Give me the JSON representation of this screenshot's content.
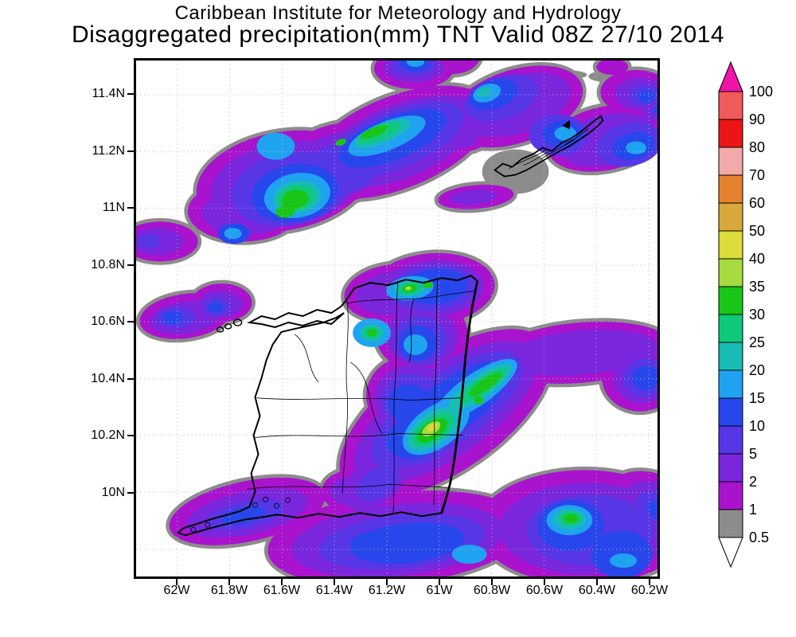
{
  "title": {
    "line1": "Caribbean Institute for Meteorology and Hydrology",
    "line2": "Disaggregated precipitation(mm) TNT Valid 08Z 27/10 2014"
  },
  "axes": {
    "lat_ticks": [
      "11.4N",
      "11.2N",
      "11N",
      "10.8N",
      "10.6N",
      "10.4N",
      "10.2N",
      "10N"
    ],
    "lon_ticks": [
      "62W",
      "61.8W",
      "61.6W",
      "61.4W",
      "61.2W",
      "61W",
      "60.8W",
      "60.6W",
      "60.4W",
      "60.2W"
    ]
  },
  "colorbar": {
    "boundaries": [
      "100",
      "90",
      "80",
      "70",
      "60",
      "50",
      "40",
      "35",
      "30",
      "25",
      "20",
      "15",
      "10",
      "5",
      "2",
      "1",
      "0.5"
    ],
    "segment_colors": [
      "#F05A5A",
      "#EC1414",
      "#F2A9A9",
      "#E5822F",
      "#D9A83C",
      "#DCDC3A",
      "#A6DC3F",
      "#17C617",
      "#0FC97B",
      "#17BCB4",
      "#1FA3F0",
      "#2747EC",
      "#5736E6",
      "#7A26DC",
      "#A913CE",
      "#8C8C8C"
    ],
    "over_color": "#F014A8",
    "under_color": "#FFFFFF"
  },
  "chart_data": {
    "type": "heatmap",
    "organization": "Caribbean Institute for Meteorology and Hydrology",
    "title": "Disaggregated precipitation(mm) TNT Valid 08Z 27/10 2014",
    "variable": "Disaggregated precipitation",
    "units": "mm",
    "model": "TNT",
    "valid_time": "08Z 27/10 2014",
    "region": "Trinidad and Tobago",
    "x": {
      "label": "longitude",
      "ticks": [
        "62W",
        "61.8W",
        "61.6W",
        "61.4W",
        "61.2W",
        "61W",
        "60.8W",
        "60.6W",
        "60.4W",
        "60.2W"
      ]
    },
    "y": {
      "label": "latitude",
      "ticks": [
        "11.4N",
        "11.2N",
        "11N",
        "10.8N",
        "10.6N",
        "10.4N",
        "10.2N",
        "10N"
      ]
    },
    "contour_levels_mm": [
      0.5,
      1,
      2,
      5,
      10,
      15,
      20,
      25,
      30,
      35,
      40,
      50,
      60,
      70,
      80,
      90,
      100
    ],
    "level_colors": [
      "#8C8C8C",
      "#A913CE",
      "#7A26DC",
      "#5736E6",
      "#2747EC",
      "#1FA3F0",
      "#17BCB4",
      "#0FC97B",
      "#17C617",
      "#A6DC3F",
      "#DCDC3A",
      "#D9A83C",
      "#E5822F",
      "#F2A9A9",
      "#EC1414",
      "#F05A5A",
      "#F014A8"
    ],
    "grid": true,
    "legend_position": "right",
    "precip_maxima": [
      {
        "location": "offshore north-west of Trinidad, ~61.35W 11.1N",
        "peak_mm": 35
      },
      {
        "location": "offshore north, elongated band ~61.05W 11.25N",
        "peak_mm": 35
      },
      {
        "location": "eastern Tobago ~60.65W 11.25N",
        "peak_mm": 25
      },
      {
        "location": "Northern Range, Trinidad ~61.15W 10.8N",
        "peak_mm": 35
      },
      {
        "location": "west-central Trinidad ~61.25W 10.47N",
        "peak_mm": 30
      },
      {
        "location": "southeast coast near Mayaro ~61.05W 10.37N",
        "peak_mm": 40
      },
      {
        "location": "east-coast offshore diagonal band ~60.9W 10.5N",
        "peak_mm": 30
      },
      {
        "location": "offshore southeast ~60.75W 10.05N",
        "peak_mm": 35
      },
      {
        "location": "band west of Trinidad ~61.9W 10.73N",
        "peak_mm": 10
      }
    ]
  }
}
